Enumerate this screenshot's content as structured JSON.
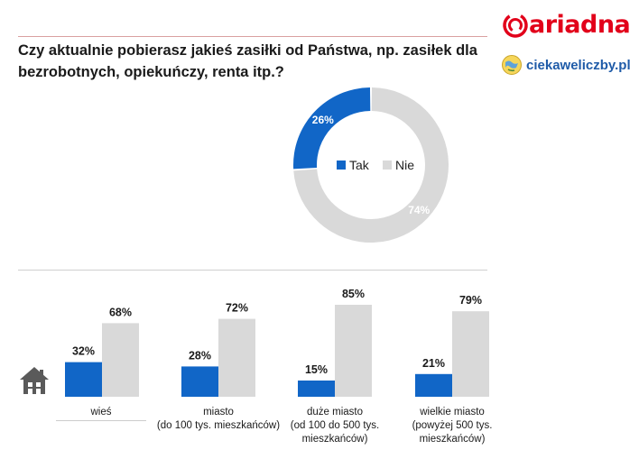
{
  "title": "Czy aktualnie pobierasz jakieś zasiłki od Państwa, np. zasiłek dla bezrobotnych, opiekuńczy, renta itp.?",
  "brand": {
    "name": "ariadna",
    "color": "#e2001a"
  },
  "partner": {
    "name": "ciekaweliczby.pl",
    "color": "#1f5ba8"
  },
  "icons": {
    "home": "house-icon"
  },
  "colors": {
    "tak": "#1166c7",
    "nie": "#d9d9d9"
  },
  "chart_data": [
    {
      "type": "pie",
      "donut": true,
      "labels": [
        "Tak",
        "Nie"
      ],
      "values": [
        26,
        74
      ],
      "value_labels": [
        "26%",
        "74%"
      ],
      "legend": "center"
    },
    {
      "type": "bar",
      "categories": [
        "wieś",
        "miasto\n(do 100 tys. mieszkańców)",
        "duże miasto\n(od 100 do 500 tys.\nmieszkańców)",
        "wielkie miasto\n(powyżej 500 tys.\nmieszkańców)"
      ],
      "series": [
        {
          "name": "Tak",
          "values": [
            32,
            28,
            15,
            21
          ],
          "value_labels": [
            "32%",
            "28%",
            "15%",
            "21%"
          ]
        },
        {
          "name": "Nie",
          "values": [
            68,
            72,
            85,
            79
          ],
          "value_labels": [
            "68%",
            "72%",
            "85%",
            "79%"
          ]
        }
      ],
      "ylim": [
        0,
        100
      ]
    }
  ]
}
